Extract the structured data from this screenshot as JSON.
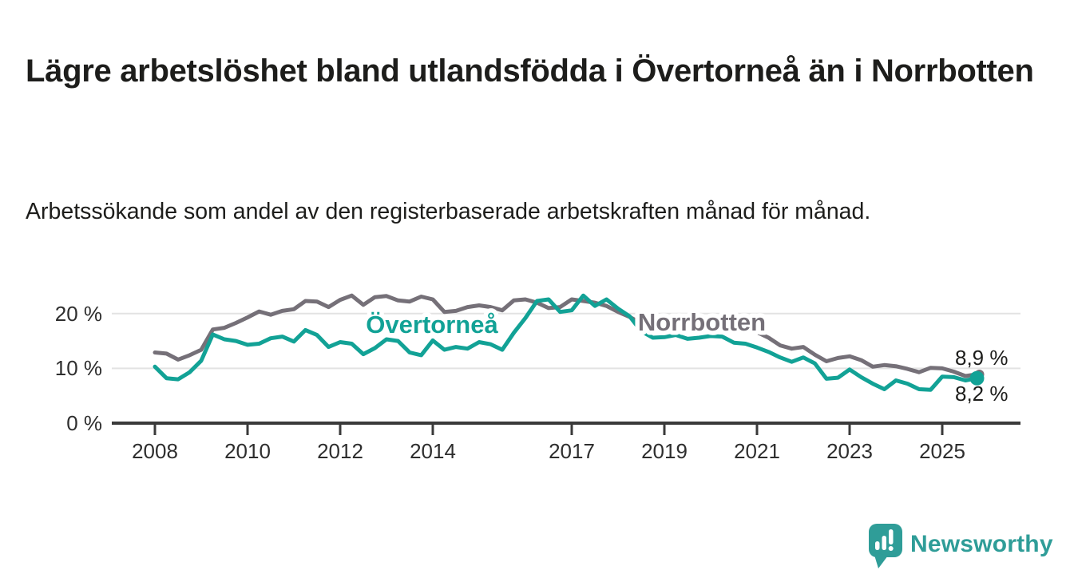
{
  "header": {
    "title": "Lägre arbetslöshet bland utlandsfödda i Övertorneå än i Norrbotten",
    "subtitle": "Arbetssökande som andel av den registerbaserade arbetskraften månad för månad."
  },
  "chart_data": {
    "type": "line",
    "x_unit": "year (monthly registry data, sampled quarterly)",
    "x_start": 2008.0,
    "x_step": 0.25,
    "x_end": 2025.75,
    "xlim": [
      2007.1,
      2026.7
    ],
    "ylim": [
      0,
      25
    ],
    "grid": "horizontal",
    "xticks": [
      2008,
      2010,
      2012,
      2014,
      2017,
      2019,
      2021,
      2023,
      2025
    ],
    "yticks": [
      {
        "value": 0,
        "label": "0 %"
      },
      {
        "value": 10,
        "label": "10 %"
      },
      {
        "value": 20,
        "label": "20 %"
      }
    ],
    "series": [
      {
        "name": "Norrbotten",
        "color": "#757078",
        "end_label": "8,9 %",
        "end_value": 8.9,
        "values": [
          12.9,
          12.7,
          11.6,
          12.4,
          13.4,
          17.1,
          17.4,
          18.3,
          19.3,
          20.4,
          19.8,
          20.5,
          20.8,
          22.3,
          22.2,
          21.2,
          22.5,
          23.3,
          21.6,
          23.0,
          23.2,
          22.4,
          22.2,
          23.1,
          22.6,
          20.3,
          20.5,
          21.2,
          21.5,
          21.2,
          20.6,
          22.4,
          22.6,
          22.0,
          21.0,
          21.2,
          22.6,
          22.3,
          22.0,
          21.4,
          20.3,
          19.4,
          18.2,
          17.5,
          17.3,
          17.2,
          17.0,
          17.1,
          17.2,
          17.8,
          18.1,
          17.5,
          16.6,
          15.6,
          14.2,
          13.6,
          13.9,
          12.5,
          11.3,
          11.9,
          12.2,
          11.5,
          10.3,
          10.6,
          10.4,
          9.9,
          9.3,
          10.1,
          10.0,
          9.4,
          8.6,
          8.9
        ]
      },
      {
        "name": "Övertorneå",
        "color": "#12a296",
        "end_label": "8,2 %",
        "end_value": 8.2,
        "values": [
          10.3,
          8.2,
          8.0,
          9.3,
          11.4,
          16.2,
          15.3,
          15.0,
          14.3,
          14.5,
          15.5,
          15.8,
          14.9,
          17.0,
          16.1,
          13.9,
          14.8,
          14.5,
          12.6,
          13.7,
          15.3,
          15.0,
          12.9,
          12.4,
          15.1,
          13.4,
          13.9,
          13.6,
          14.8,
          14.4,
          13.4,
          16.5,
          19.2,
          22.3,
          22.6,
          20.3,
          20.6,
          23.3,
          21.4,
          22.6,
          20.9,
          19.5,
          16.8,
          15.6,
          15.7,
          16.1,
          15.4,
          15.6,
          15.9,
          15.8,
          14.7,
          14.5,
          13.8,
          13.0,
          12.0,
          11.2,
          12.0,
          10.9,
          8.1,
          8.3,
          9.8,
          8.4,
          7.2,
          6.2,
          7.8,
          7.2,
          6.2,
          6.1,
          8.5,
          8.4,
          7.8,
          8.2
        ]
      }
    ],
    "colors": {
      "grid": "#e3e3e3",
      "axis": "#3a3a3a",
      "tick_text": "#2e2e2e"
    }
  },
  "footer": {
    "brand": "Newsworthy",
    "brand_color": "#2f9d98",
    "logo_icon": "speech-bubble-bar-chart-exclamation"
  }
}
